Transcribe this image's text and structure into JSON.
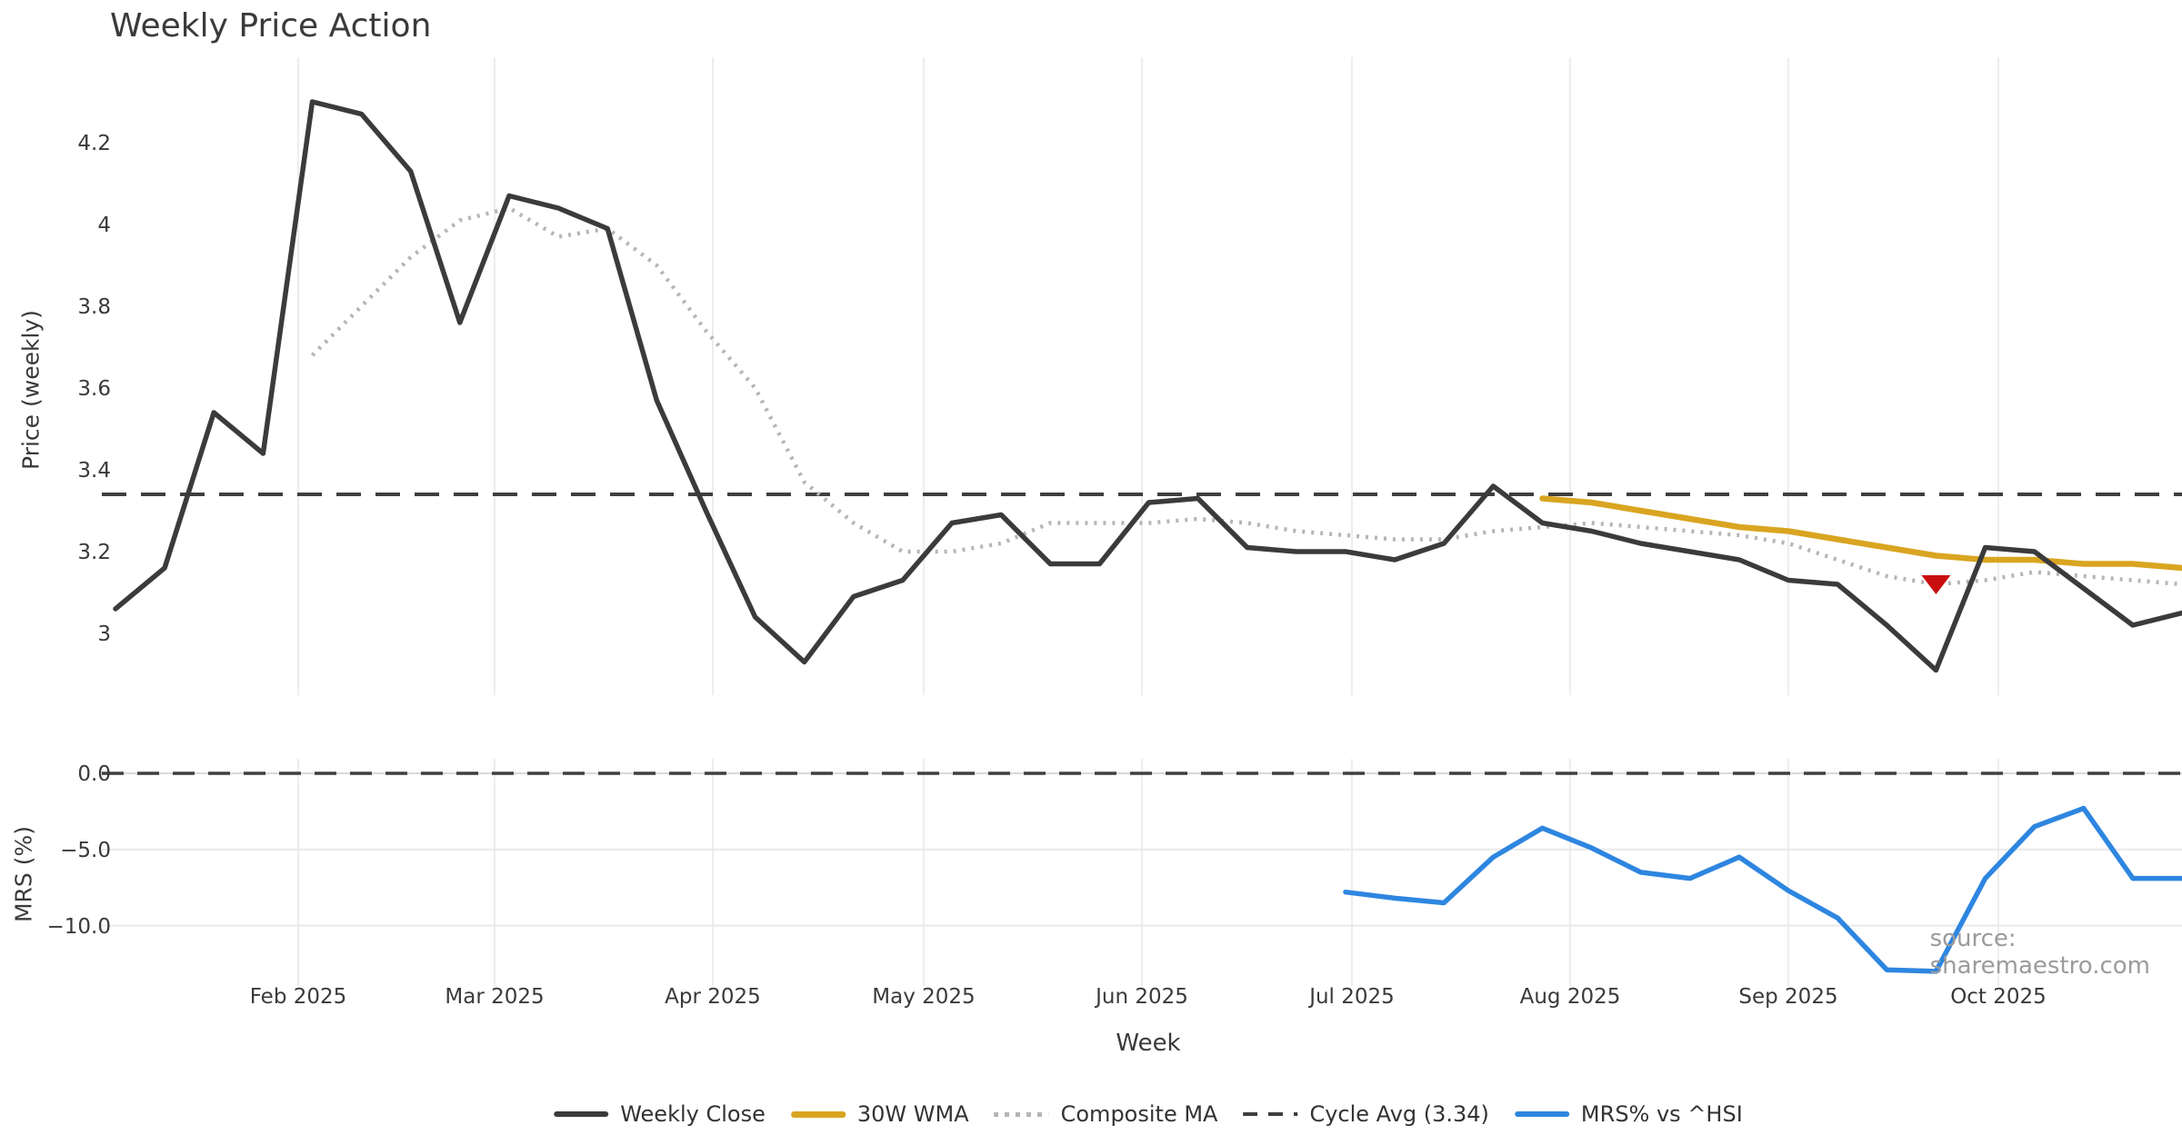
{
  "title": "Weekly Price Action",
  "source_note": "source: sharemaestro.com",
  "axes": {
    "top_ylabel": "Price (weekly)",
    "bottom_ylabel": "MRS (%)",
    "xlabel": "Week",
    "top_yticks": [
      "4.2",
      "4",
      "3.8",
      "3.6",
      "3.4",
      "3.2",
      "3"
    ],
    "bottom_yticks": [
      "0.0",
      "−5.0",
      "−10.0"
    ],
    "xticks": [
      "Feb 2025",
      "Mar 2025",
      "Apr 2025",
      "May 2025",
      "Jun 2025",
      "Jul 2025",
      "Aug 2025",
      "Sep 2025",
      "Oct 2025"
    ]
  },
  "legend": [
    {
      "label": "Weekly Close"
    },
    {
      "label": "30W WMA"
    },
    {
      "label": "Composite MA"
    },
    {
      "label": "Cycle Avg (3.34)"
    },
    {
      "label": "MRS% vs ^HSI"
    }
  ],
  "colors": {
    "close": "#3b3b3b",
    "wma": "#d9a521",
    "composite": "#b5b5b5",
    "cycle": "#3f3f3f",
    "mrs": "#2e86e0",
    "marker": "#c90f0f",
    "grid_v": "#ededed",
    "grid_h": "#e9e9e9",
    "zero_base": "#d9d9d9",
    "text": "#3a3a3a"
  },
  "chart_data": [
    {
      "type": "line",
      "panel": "price",
      "title": "Weekly Price Action",
      "ylabel": "Price (weekly)",
      "xlabel": "Week",
      "x_unit": "weekly points, Jan 2025 through late Oct 2025 (month ticks shown)",
      "x_tick_labels": [
        "Feb 2025",
        "Mar 2025",
        "Apr 2025",
        "May 2025",
        "Jun 2025",
        "Jul 2025",
        "Aug 2025",
        "Sep 2025",
        "Oct 2025"
      ],
      "ylim": [
        2.85,
        4.41
      ],
      "yticks": [
        4.2,
        4.0,
        3.8,
        3.6,
        3.4,
        3.2,
        3.0
      ],
      "grid": "vertical month gridlines only",
      "legend_position": "bottom center (shared)",
      "cycle_avg": 3.34,
      "series": [
        {
          "name": "Weekly Close",
          "style": "solid",
          "color": "#3b3b3b",
          "start_week": 0,
          "values": [
            3.06,
            3.16,
            3.54,
            3.44,
            4.3,
            4.27,
            4.13,
            3.76,
            4.07,
            4.04,
            3.99,
            3.57,
            3.3,
            3.04,
            2.93,
            3.09,
            3.13,
            3.27,
            3.29,
            3.17,
            3.17,
            3.32,
            3.33,
            3.21,
            3.2,
            3.2,
            3.18,
            3.22,
            3.36,
            3.27,
            3.25,
            3.22,
            3.2,
            3.18,
            3.13,
            3.12,
            3.02,
            2.91,
            3.21,
            3.2,
            3.11,
            3.02,
            3.05
          ]
        },
        {
          "name": "Composite MA",
          "style": "dotted",
          "color": "#b5b5b5",
          "start_week": 4,
          "values": [
            3.68,
            3.8,
            3.92,
            4.01,
            4.04,
            3.97,
            3.99,
            3.9,
            3.74,
            3.6,
            3.37,
            3.27,
            3.2,
            3.2,
            3.22,
            3.27,
            3.27,
            3.27,
            3.28,
            3.27,
            3.25,
            3.24,
            3.23,
            3.23,
            3.25,
            3.26,
            3.27,
            3.26,
            3.25,
            3.24,
            3.22,
            3.18,
            3.14,
            3.12,
            3.13,
            3.15,
            3.14,
            3.13,
            3.12
          ]
        },
        {
          "name": "30W WMA",
          "style": "solid",
          "color": "#d9a521",
          "start_week": 29,
          "values": [
            3.33,
            3.32,
            3.3,
            3.28,
            3.26,
            3.25,
            3.23,
            3.21,
            3.19,
            3.18,
            3.18,
            3.17,
            3.17,
            3.16
          ]
        },
        {
          "name": "Cycle Avg (3.34)",
          "style": "dashed",
          "color": "#3f3f3f",
          "constant": 3.34
        }
      ],
      "markers": [
        {
          "shape": "triangle-down",
          "color": "#c90f0f",
          "week": 37,
          "value": 3.12
        }
      ]
    },
    {
      "type": "line",
      "panel": "mrs",
      "ylabel": "MRS (%)",
      "ylim": [
        -14.3,
        1.0
      ],
      "yticks": [
        0.0,
        -5.0,
        -10.0
      ],
      "gridlines_y": [
        -5.0,
        -10.0
      ],
      "zero_dashed_line": 0.0,
      "series": [
        {
          "name": "MRS% vs ^HSI",
          "style": "solid",
          "color": "#2e86e0",
          "start_week": 25,
          "values": [
            -7.8,
            -8.2,
            -8.5,
            -5.5,
            -3.6,
            -4.9,
            -6.5,
            -6.9,
            -5.5,
            -7.7,
            -9.5,
            -12.9,
            -13.0,
            -6.9,
            -3.5,
            -2.3,
            -6.9,
            -6.9
          ]
        }
      ]
    }
  ]
}
